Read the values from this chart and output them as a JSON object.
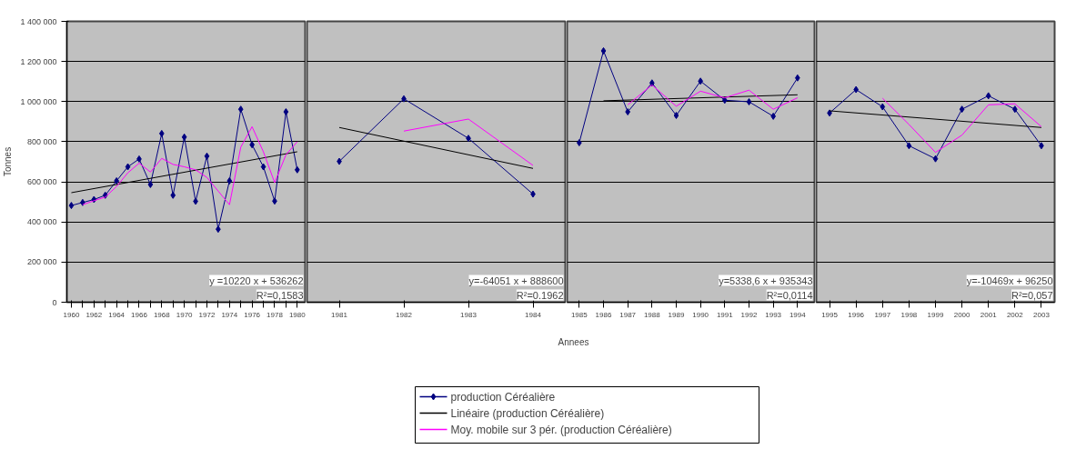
{
  "chart_data": [
    {
      "type": "line",
      "ylabel": "Tonnes",
      "xlim": [
        1959.6,
        1980.7
      ],
      "ylim": [
        0,
        1400000
      ],
      "x": [
        1960,
        1961,
        1962,
        1963,
        1964,
        1965,
        1966,
        1967,
        1968,
        1969,
        1970,
        1971,
        1972,
        1973,
        1974,
        1975,
        1976,
        1977,
        1978,
        1979,
        1980
      ],
      "xticks": [
        1960,
        {
          "value": 1961,
          "label": null
        },
        1962,
        {
          "value": 1963,
          "label": null
        },
        1964,
        {
          "value": 1965,
          "label": null
        },
        1966,
        {
          "value": 1967,
          "label": null
        },
        1968,
        {
          "value": 1969,
          "label": null
        },
        1970,
        {
          "value": 1971,
          "label": null
        },
        1972,
        {
          "value": 1973,
          "label": null
        },
        1974,
        {
          "value": 1975,
          "label": null
        },
        1976,
        {
          "value": 1977,
          "label": null
        },
        1978,
        {
          "value": 1979,
          "label": null
        },
        1980
      ],
      "yticks": [
        {
          "value": 0,
          "label": "0"
        },
        {
          "value": 200000,
          "label": "200 000"
        },
        {
          "value": 400000,
          "label": "400 000"
        },
        {
          "value": 600000,
          "label": "600 000"
        },
        {
          "value": 800000,
          "label": "800 000"
        },
        {
          "value": 1000000,
          "label": "1 000 000"
        },
        {
          "value": 1200000,
          "label": "1 200 000"
        },
        {
          "value": 1400000,
          "label": "1 400 000"
        }
      ],
      "grid": "y",
      "legend": "bottom",
      "series": [
        {
          "name": "production Céréalière",
          "color": "#000080",
          "marker": "diamond",
          "values": [
            482000,
            497000,
            512000,
            533000,
            605000,
            675000,
            714000,
            587000,
            841000,
            533000,
            823000,
            503000,
            728000,
            364000,
            605000,
            962000,
            785000,
            675000,
            504000,
            949000,
            660000
          ]
        },
        {
          "name": "Linéaire (production Céréalière)",
          "color": "#000000",
          "marker": "none",
          "x": [
            1960,
            1980
          ],
          "values": [
            546000,
            750000
          ]
        },
        {
          "name": "Moy. mobile sur 3 pér. (production Céréalière)",
          "color": "#ff00ff",
          "marker": "none",
          "x": [
            1961,
            1962,
            1963,
            1964,
            1965,
            1966,
            1967,
            1968,
            1969,
            1970,
            1971,
            1972,
            1973,
            1974,
            1975,
            1976,
            1977,
            1978,
            1979,
            1980
          ],
          "values": [
            486000,
            506000,
            524000,
            577000,
            645000,
            693000,
            649000,
            717000,
            687000,
            675000,
            660000,
            622000,
            554000,
            486000,
            773000,
            875000,
            750000,
            596000,
            735000,
            800000
          ]
        }
      ],
      "annotations": [
        "y =10220 x + 536262",
        "R²=0,1583",
        "Annees"
      ]
    },
    {
      "type": "line",
      "xlim": [
        1980.5,
        1984.5
      ],
      "ylim": [
        0,
        1400000
      ],
      "x": [
        1981,
        1982,
        1983,
        1984
      ],
      "xticks": [
        1981,
        1982,
        1983,
        1984
      ],
      "yticks": [
        0,
        200000,
        400000,
        600000,
        800000,
        1000000,
        1200000,
        1400000
      ],
      "grid": "y",
      "tick_labels": "x",
      "series": [
        {
          "color": "#000080",
          "marker": "diamond",
          "values": [
            702000,
            1014000,
            817000,
            539000
          ]
        },
        {
          "color": "#000000",
          "marker": "none",
          "x": [
            1981,
            1984
          ],
          "values": [
            871000,
            667000
          ]
        },
        {
          "color": "#ff00ff",
          "marker": "none",
          "x": [
            1982,
            1983,
            1984
          ],
          "values": [
            853000,
            913000,
            682000
          ]
        }
      ],
      "annotations": [
        "y=-64051 x + 888600",
        "R²=0.1962"
      ]
    },
    {
      "type": "line",
      "xlim": [
        1984.5,
        1994.7
      ],
      "ylim": [
        0,
        1400000
      ],
      "x": [
        1985,
        1986,
        1987,
        1988,
        1989,
        1990,
        1991,
        1992,
        1993,
        1994
      ],
      "xticks": [
        1985,
        1986,
        1987,
        1988,
        1989,
        1990,
        1991,
        1992,
        1993,
        1994
      ],
      "yticks": [
        0,
        200000,
        400000,
        600000,
        800000,
        1000000,
        1200000,
        1400000
      ],
      "grid": "y",
      "tick_labels": "x",
      "series": [
        {
          "color": "#000080",
          "marker": "diamond",
          "values": [
            795000,
            1253000,
            949000,
            1093000,
            931000,
            1102000,
            1007000,
            999000,
            927000,
            1118000
          ]
        },
        {
          "color": "#000000",
          "marker": "none",
          "x": [
            1986,
            1994
          ],
          "values": [
            1004000,
            1034000
          ]
        },
        {
          "color": "#ff00ff",
          "marker": "none",
          "x": [
            1987,
            1988,
            1989,
            1990,
            1991,
            1992,
            1993,
            1994
          ],
          "values": [
            984000,
            1083000,
            977000,
            1052000,
            1019000,
            1057000,
            962000,
            1019000
          ]
        }
      ],
      "annotations": [
        "y=5338,6 x + 935343",
        "R²=0,0114"
      ]
    },
    {
      "type": "line",
      "xlim": [
        1994.5,
        2003.5
      ],
      "ylim": [
        0,
        1400000
      ],
      "x": [
        1995,
        1996,
        1997,
        1998,
        1999,
        2000,
        2001,
        2002,
        2003
      ],
      "xticks": [
        1995,
        1996,
        1997,
        1998,
        1999,
        2000,
        2001,
        2002,
        2003
      ],
      "yticks": [
        0,
        200000,
        400000,
        600000,
        800000,
        1000000,
        1200000,
        1400000
      ],
      "grid": "y",
      "tick_labels": "x",
      "series": [
        {
          "color": "#000080",
          "marker": "diamond",
          "values": [
            943000,
            1060000,
            974000,
            780000,
            715000,
            962000,
            1029000,
            962000,
            780000
          ]
        },
        {
          "color": "#000000",
          "marker": "none",
          "x": [
            1995,
            2003
          ],
          "values": [
            954000,
            871000
          ]
        },
        {
          "color": "#ff00ff",
          "marker": "none",
          "x": [
            1997,
            1998,
            1999,
            2000,
            2001,
            2002,
            2003
          ],
          "values": [
            1017000,
            886000,
            747000,
            833000,
            984000,
            989000,
            875000
          ]
        }
      ],
      "annotations": [
        "y=-10469x + 96250",
        "R²=0,057"
      ]
    }
  ]
}
